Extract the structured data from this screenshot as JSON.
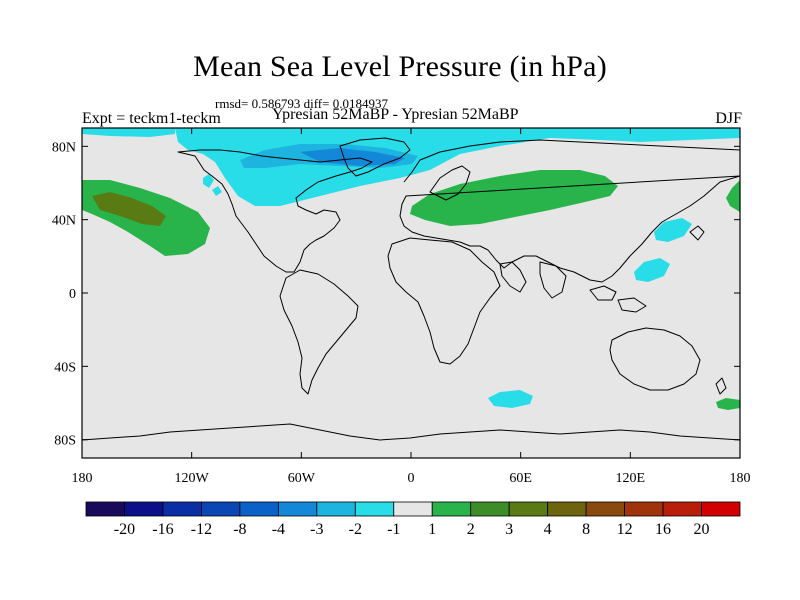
{
  "header": {
    "title": "Mean Sea Level Pressure (in hPa)",
    "stats": "rmsd= 0.586793 diff= 0.0184937",
    "left_label": "Expt = teckm1-teckm",
    "center_label": "Ypresian  52MaBP - Ypresian  52MaBP",
    "right_label": "DJF"
  },
  "map": {
    "projection": "cylindrical-equidistant",
    "lon_range": [
      -180,
      180
    ],
    "lat_range": [
      -90,
      90
    ],
    "background_color": "#e6e6e6",
    "coastline_color": "#000000",
    "y_tick_labels": [
      "80N",
      "40N",
      "0",
      "40S",
      "80S"
    ],
    "x_tick_labels": [
      "180",
      "120W",
      "60W",
      "0",
      "60E",
      "120E",
      "180"
    ]
  },
  "colorbar": {
    "colors": [
      "#1a0a5c",
      "#0c0e8a",
      "#0a2ea6",
      "#0a46b4",
      "#0a62c8",
      "#1488d8",
      "#1eb4e0",
      "#28dce8",
      "#e6e6e6",
      "#28b44a",
      "#3c8c28",
      "#5a7a14",
      "#6e6410",
      "#8a4a0e",
      "#a0320c",
      "#b81e0a",
      "#d20000"
    ],
    "labels": [
      "-20",
      "-16",
      "-12",
      "-8",
      "-4",
      "-3",
      "-2",
      "-1",
      "1",
      "2",
      "3",
      "4",
      "8",
      "12",
      "16",
      "20"
    ]
  }
}
